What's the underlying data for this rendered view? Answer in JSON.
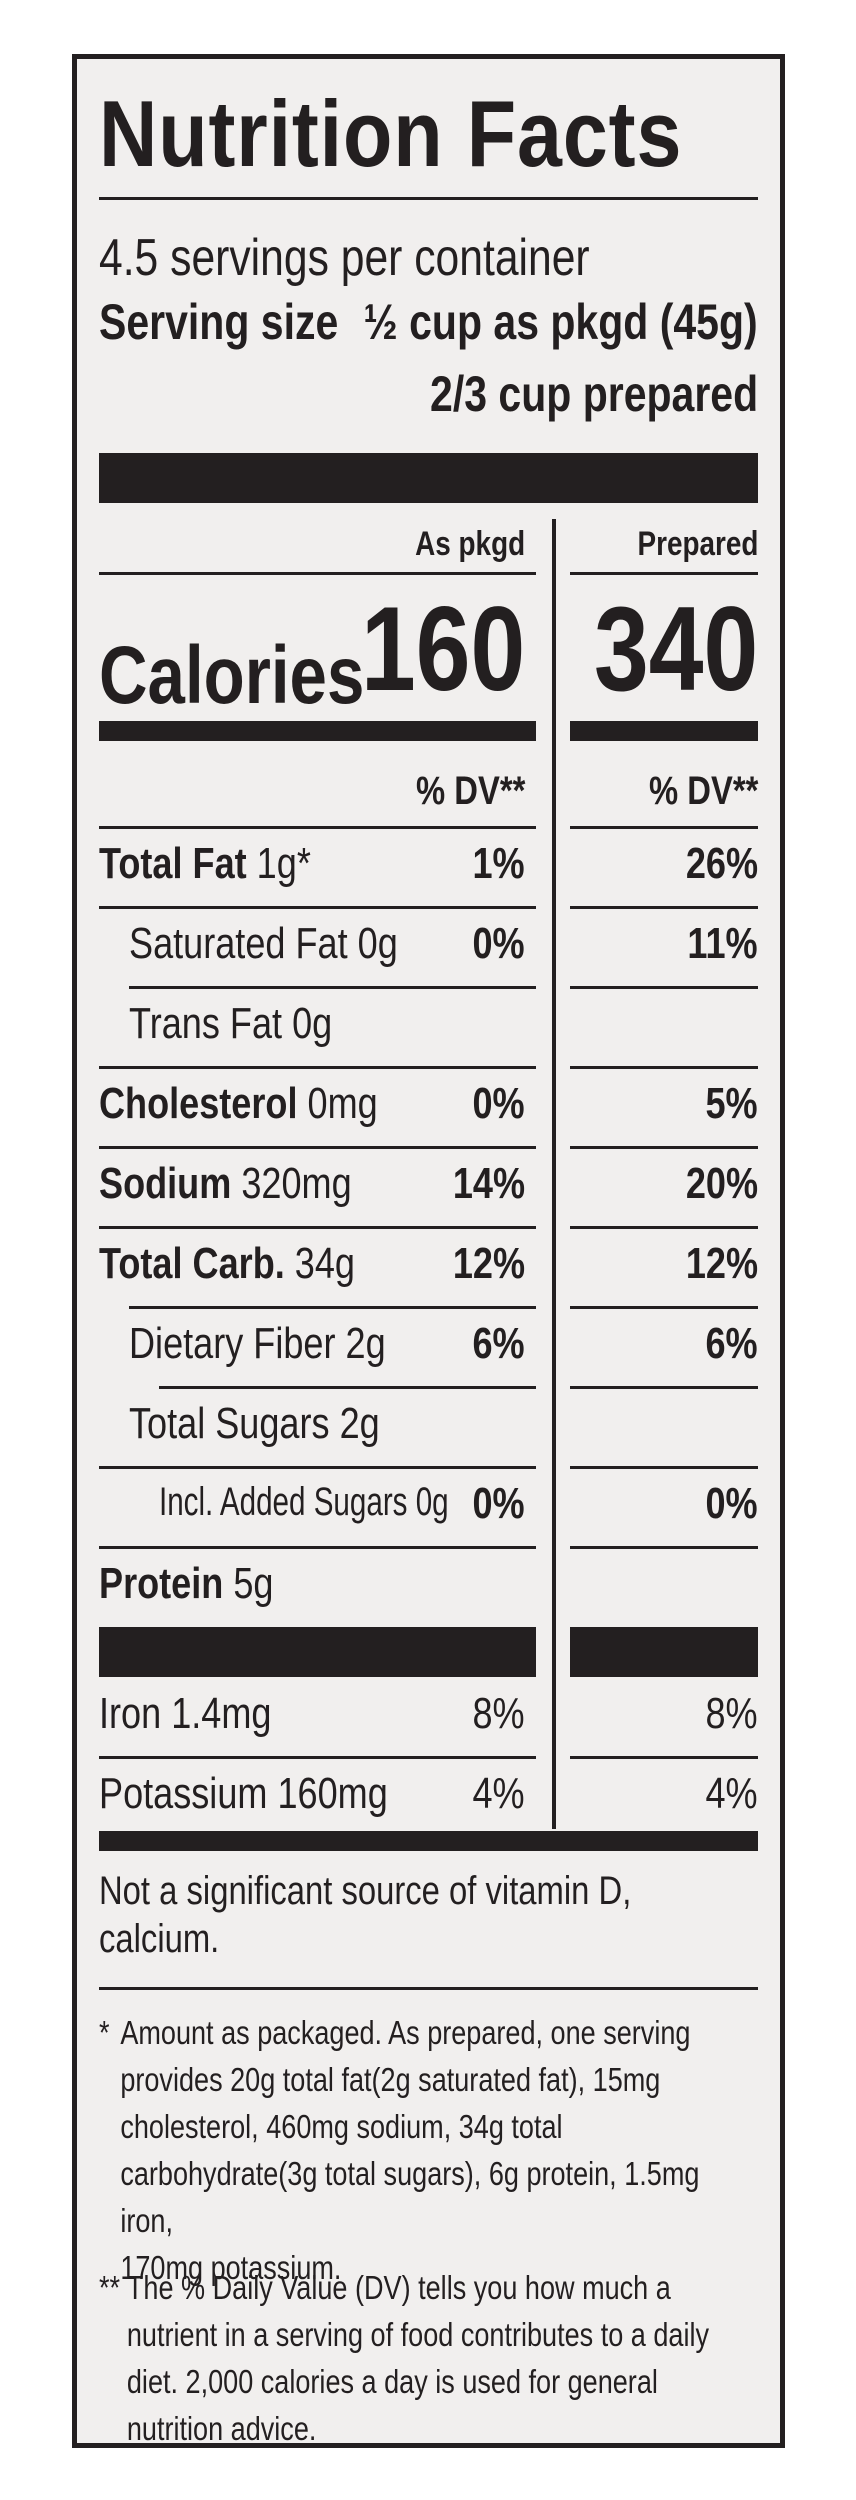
{
  "label": {
    "title": "Nutrition Facts",
    "servings_per_container": "4.5 servings per container",
    "serving_size_label": "Serving size",
    "serving_size_value": "½ cup as pkgd (45g)",
    "serving_size_prepared": "2/3 cup prepared",
    "column_heads": {
      "packaged": "As pkgd",
      "prepared": "Prepared"
    },
    "calories": {
      "label": "Calories",
      "packaged": "160",
      "prepared": "340"
    },
    "dv_heading": "% DV**",
    "rows": [
      {
        "label": "Total Fat",
        "amount": "1g*",
        "dv_pkgd": "1%",
        "dv_prep": "26%"
      },
      {
        "label": "Saturated Fat",
        "amount": "0g",
        "dv_pkgd": "0%",
        "dv_prep": "11%"
      },
      {
        "label": "Trans Fat",
        "amount": "0g",
        "dv_pkgd": "",
        "dv_prep": ""
      },
      {
        "label": "Cholesterol",
        "amount": "0mg",
        "dv_pkgd": "0%",
        "dv_prep": "5%"
      },
      {
        "label": "Sodium",
        "amount": "320mg",
        "dv_pkgd": "14%",
        "dv_prep": "20%"
      },
      {
        "label": "Total Carb.",
        "amount": "34g",
        "dv_pkgd": "12%",
        "dv_prep": "12%"
      },
      {
        "label": "Dietary Fiber",
        "amount": "2g",
        "dv_pkgd": "6%",
        "dv_prep": "6%"
      },
      {
        "label": "Total Sugars",
        "amount": "2g",
        "dv_pkgd": "",
        "dv_prep": ""
      },
      {
        "label": "Incl. Added Sugars",
        "amount": "0g",
        "dv_pkgd": "0%",
        "dv_prep": "0%"
      },
      {
        "label": "Protein",
        "amount": "5g",
        "dv_pkgd": "",
        "dv_prep": ""
      },
      {
        "label": "Iron",
        "amount": "1.4mg",
        "dv_pkgd": "8%",
        "dv_prep": "8%"
      },
      {
        "label": "Potassium",
        "amount": "160mg",
        "dv_pkgd": "4%",
        "dv_prep": "4%"
      }
    ],
    "not_significant_line1": "Not a significant source of vitamin D,",
    "not_significant_line2": "calcium.",
    "footnote_star": {
      "mark": "*",
      "lines": [
        "Amount as packaged. As prepared, one serving",
        "provides 20g total fat(2g saturated fat), 15mg",
        "cholesterol, 460mg sodium, 34g total",
        "carbohydrate(3g total sugars), 6g protein, 1.5mg iron,",
        "170mg potassium."
      ]
    },
    "footnote_dv": {
      "mark": "**",
      "lines": [
        "The % Daily Value (DV) tells you how much a",
        "nutrient in a serving of food contributes to a daily",
        "diet. 2,000 calories a day is used for general",
        "nutrition advice."
      ]
    }
  }
}
